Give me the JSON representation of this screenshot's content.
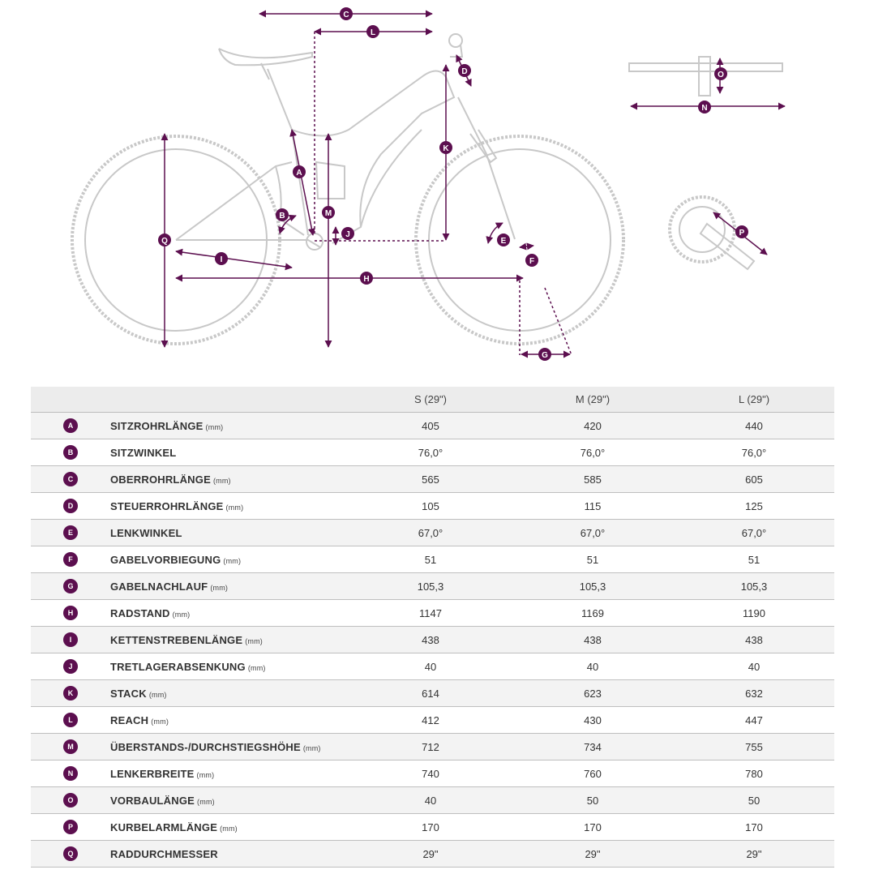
{
  "diagram": {
    "accent_color": "#5c0f4f",
    "line_color": "#c8c8c8",
    "labels": [
      "A",
      "B",
      "C",
      "D",
      "E",
      "F",
      "G",
      "H",
      "I",
      "J",
      "K",
      "L",
      "M",
      "N",
      "O",
      "P",
      "Q"
    ]
  },
  "table": {
    "columns": [
      "S (29\")",
      "M (29\")",
      "L (29\")"
    ],
    "rows": [
      {
        "letter": "A",
        "name": "SITZROHRLÄNGE",
        "unit": "(mm)",
        "values": [
          "405",
          "420",
          "440"
        ]
      },
      {
        "letter": "B",
        "name": "SITZWINKEL",
        "unit": "",
        "values": [
          "76,0°",
          "76,0°",
          "76,0°"
        ]
      },
      {
        "letter": "C",
        "name": "OBERROHRLÄNGE",
        "unit": "(mm)",
        "values": [
          "565",
          "585",
          "605"
        ]
      },
      {
        "letter": "D",
        "name": "STEUERROHRLÄNGE",
        "unit": "(mm)",
        "values": [
          "105",
          "115",
          "125"
        ]
      },
      {
        "letter": "E",
        "name": "LENKWINKEL",
        "unit": "",
        "values": [
          "67,0°",
          "67,0°",
          "67,0°"
        ]
      },
      {
        "letter": "F",
        "name": "GABELVORBIEGUNG",
        "unit": "(mm)",
        "values": [
          "51",
          "51",
          "51"
        ]
      },
      {
        "letter": "G",
        "name": "GABELNACHLAUF",
        "unit": "(mm)",
        "values": [
          "105,3",
          "105,3",
          "105,3"
        ]
      },
      {
        "letter": "H",
        "name": "RADSTAND",
        "unit": "(mm)",
        "values": [
          "1147",
          "1169",
          "1190"
        ]
      },
      {
        "letter": "I",
        "name": "KETTENSTREBENLÄNGE",
        "unit": "(mm)",
        "values": [
          "438",
          "438",
          "438"
        ]
      },
      {
        "letter": "J",
        "name": "TRETLAGERABSENKUNG",
        "unit": "(mm)",
        "values": [
          "40",
          "40",
          "40"
        ]
      },
      {
        "letter": "K",
        "name": "STACK",
        "unit": "(mm)",
        "values": [
          "614",
          "623",
          "632"
        ]
      },
      {
        "letter": "L",
        "name": "REACH",
        "unit": "(mm)",
        "values": [
          "412",
          "430",
          "447"
        ]
      },
      {
        "letter": "M",
        "name": "ÜBERSTANDS-/DURCHSTIEGSHÖHE",
        "unit": "(mm)",
        "values": [
          "712",
          "734",
          "755"
        ]
      },
      {
        "letter": "N",
        "name": "LENKERBREITE",
        "unit": "(mm)",
        "values": [
          "740",
          "760",
          "780"
        ]
      },
      {
        "letter": "O",
        "name": "VORBAULÄNGE",
        "unit": "(mm)",
        "values": [
          "40",
          "50",
          "50"
        ]
      },
      {
        "letter": "P",
        "name": "KURBELARMLÄNGE",
        "unit": "(mm)",
        "values": [
          "170",
          "170",
          "170"
        ]
      },
      {
        "letter": "Q",
        "name": "RADDURCHMESSER",
        "unit": "",
        "values": [
          "29\"",
          "29\"",
          "29\""
        ]
      }
    ]
  }
}
